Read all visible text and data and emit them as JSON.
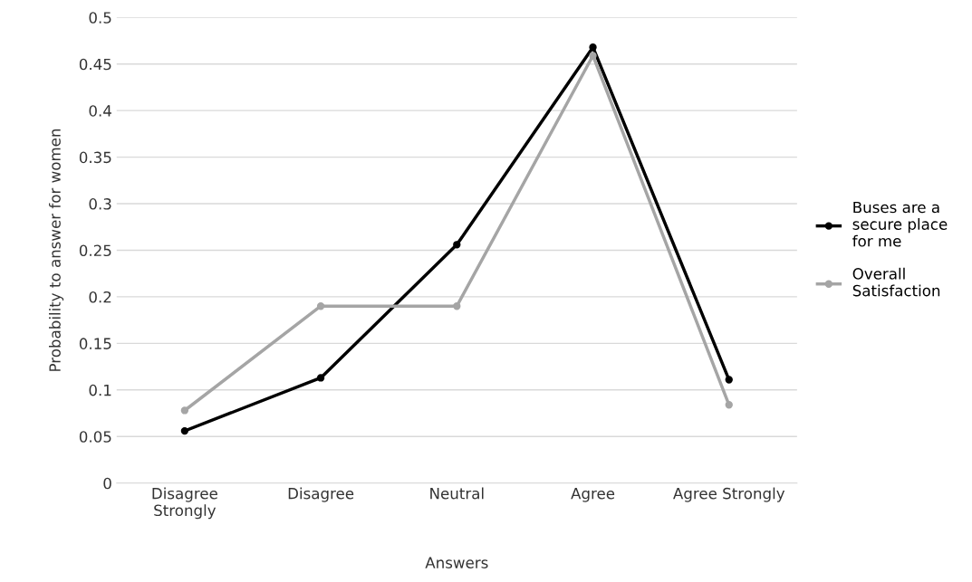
{
  "chart_data": {
    "type": "line",
    "xlabel": "Answers",
    "ylabel": "Probability to answer for women",
    "categories": [
      "Disagree\nStrongly",
      "Disagree",
      "Neutral",
      "Agree",
      "Agree Strongly"
    ],
    "series": [
      {
        "name": "Buses are a\nsecure place\nfor me",
        "color": "#000000",
        "values": [
          0.056,
          0.113,
          0.256,
          0.468,
          0.111
        ]
      },
      {
        "name": "Overall\nSatisfaction",
        "color": "#a5a5a5",
        "values": [
          0.078,
          0.19,
          0.19,
          0.459,
          0.084
        ]
      }
    ],
    "ylim": [
      0,
      0.5
    ],
    "yticks": [
      0,
      0.05,
      0.1,
      0.15,
      0.2,
      0.25,
      0.3,
      0.35,
      0.4,
      0.45,
      0.5
    ],
    "grid": "y",
    "legend": "right",
    "marker": "circle",
    "line_style": "solid"
  }
}
